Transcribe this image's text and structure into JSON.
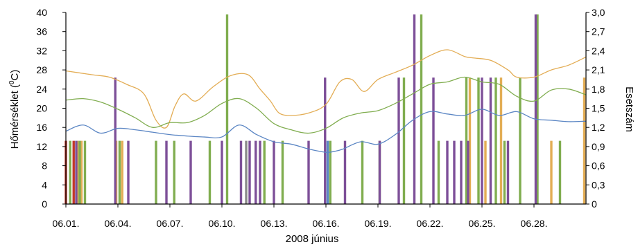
{
  "chart_data": {
    "type": "bar+line",
    "title": "",
    "xlabel": "2008 június",
    "ylabel_left": "Hőmérséklet (⁰C)",
    "ylabel_left_parts": {
      "pre": "Hőmérséklet (",
      "sup": "0",
      "post": "C)"
    },
    "ylabel_right": "Esetszám",
    "ylim_left": [
      0,
      40
    ],
    "ylim_right": [
      0,
      3.0
    ],
    "xlim_days": [
      1,
      31
    ],
    "x_ticks": [
      {
        "day": 1,
        "label": "06.01."
      },
      {
        "day": 4,
        "label": "06.04."
      },
      {
        "day": 7,
        "label": "06.07."
      },
      {
        "day": 10,
        "label": "06.10."
      },
      {
        "day": 13,
        "label": "06.13."
      },
      {
        "day": 16,
        "label": "06.16."
      },
      {
        "day": 19,
        "label": "06.19."
      },
      {
        "day": 22,
        "label": "06.22."
      },
      {
        "day": 25,
        "label": "06.25."
      },
      {
        "day": 28,
        "label": "06.28."
      }
    ],
    "y_ticks_left": [
      "0",
      "4",
      "8",
      "12",
      "16",
      "20",
      "24",
      "28",
      "32",
      "36",
      "40"
    ],
    "y_ticks_right": [
      "0",
      "0,3",
      "0,6",
      "0,9",
      "1,2",
      "1,5",
      "1,8",
      "2,1",
      "2,4",
      "2,7",
      "3,0"
    ],
    "grid": false,
    "colors": {
      "red": "#c0392b",
      "orange": "#e3ad55",
      "green": "#80ad4f",
      "purple": "#7d4f98",
      "blue": "#5b86c4",
      "gray": "#8a8a8a"
    },
    "line_series": [
      {
        "color": "orange",
        "x": [
          1,
          2.5,
          3.5,
          4.5,
          5.5,
          6.2,
          6.8,
          7.3,
          7.8,
          8.5,
          9.5,
          10.5,
          11.5,
          12.2,
          12.8,
          13.3,
          14,
          15,
          16,
          16.8,
          17.5,
          18.2,
          19,
          20,
          21,
          22,
          23,
          24,
          24.5,
          25.5,
          26.5,
          27,
          28,
          29,
          30,
          31
        ],
        "y": [
          27.8,
          27,
          26.5,
          25,
          23,
          17.5,
          16,
          20.5,
          23,
          21.5,
          24.5,
          26.8,
          27,
          24,
          21.5,
          19,
          18.5,
          19,
          20.8,
          25.5,
          26,
          23.5,
          26,
          27.5,
          29,
          31,
          32.2,
          30.8,
          30.5,
          30,
          28,
          26.5,
          26.5,
          28,
          29,
          30.7
        ]
      },
      {
        "color": "green",
        "x": [
          1,
          2,
          3,
          4,
          5,
          6,
          7,
          8,
          9,
          10,
          11,
          12,
          13,
          14,
          15,
          16,
          17,
          18,
          19,
          20,
          21,
          22,
          23,
          24,
          25,
          26,
          27,
          28,
          29,
          30,
          31
        ],
        "y": [
          21.7,
          22,
          21.3,
          19.8,
          18,
          16,
          17,
          17,
          18.5,
          21,
          22,
          20,
          16.8,
          15.5,
          14.8,
          15.8,
          18,
          19,
          19.5,
          21,
          23,
          25,
          25.5,
          26.5,
          25.5,
          25,
          22.5,
          21.5,
          23.8,
          24,
          22.8
        ]
      },
      {
        "color": "blue",
        "x": [
          1,
          2,
          3,
          4,
          5,
          6,
          7,
          8,
          9,
          10,
          11,
          12,
          13,
          14,
          15,
          16,
          16.5,
          17,
          18,
          19,
          20,
          21,
          22,
          23,
          24,
          25,
          26,
          27,
          28,
          29,
          30,
          31
        ],
        "y": [
          15.2,
          16.5,
          14.8,
          15.8,
          15.5,
          15,
          14.5,
          14.2,
          14,
          14,
          16.5,
          14.5,
          13,
          12.5,
          11.5,
          10.8,
          11,
          11.5,
          13,
          12.5,
          14.5,
          17.5,
          19.3,
          18.8,
          18.5,
          19.8,
          18.5,
          19.3,
          17.8,
          17.5,
          17.2,
          17.3
        ]
      }
    ],
    "bar_series": [
      {
        "color": "red",
        "x": [
          1.0,
          1.45
        ],
        "values": [
          0.99,
          0.99
        ]
      },
      {
        "color": "orange",
        "x": [
          1.7,
          1.9,
          3.9,
          4.25,
          24.3,
          25.2,
          26.1,
          29.0,
          30.9
        ],
        "values": [
          0.99,
          0.99,
          0.99,
          0.99,
          1.98,
          0.99,
          1.98,
          0.99,
          1.98
        ]
      },
      {
        "color": "green",
        "x": [
          1.25,
          1.8,
          2.1,
          4.1,
          6.2,
          7.25,
          9.3,
          10.3,
          12.45,
          13.5,
          16.25,
          18.1,
          19.1,
          20.5,
          21.5,
          22.5,
          24.1,
          24.8,
          25.8,
          26.3,
          27.2,
          28.2,
          29.5
        ],
        "values": [
          0.99,
          0.99,
          0.99,
          0.99,
          0.99,
          0.99,
          0.99,
          2.97,
          0.99,
          0.99,
          0.99,
          0.99,
          0.99,
          1.98,
          2.97,
          0.99,
          1.98,
          1.98,
          1.98,
          0.99,
          1.98,
          2.97,
          0.99
        ]
      },
      {
        "color": "purple",
        "x": [
          1.6,
          3.85,
          4.6,
          6.8,
          8.2,
          10.0,
          11.1,
          11.6,
          11.95,
          12.2,
          13.0,
          15.0,
          15.95,
          17.1,
          19.1,
          20.2,
          21.1,
          22.2,
          23.0,
          23.4,
          23.8,
          24.2,
          25.0,
          25.5,
          26.5,
          28.1
        ],
        "values": [
          0.99,
          1.98,
          0.99,
          0.99,
          0.99,
          0.99,
          0.99,
          0.99,
          0.99,
          0.99,
          0.99,
          0.99,
          1.98,
          0.99,
          0.99,
          1.98,
          2.97,
          1.98,
          0.99,
          0.99,
          0.99,
          0.99,
          1.98,
          1.98,
          0.99,
          2.97
        ]
      },
      {
        "color": "blue",
        "x": [
          16.1
        ],
        "values": [
          0.99
        ]
      },
      {
        "color": "gray",
        "x": [
          11.4
        ],
        "values": [
          0.99
        ]
      }
    ]
  }
}
